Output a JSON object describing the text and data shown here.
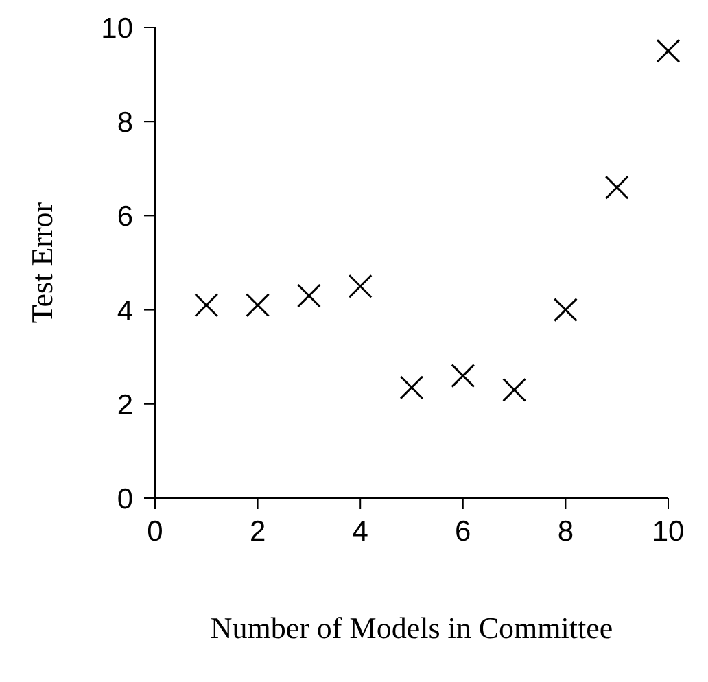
{
  "chart_data": {
    "type": "scatter",
    "xlabel": "Number of Models in Committee",
    "ylabel": "Test Error",
    "x": [
      1,
      2,
      3,
      4,
      5,
      6,
      7,
      8,
      9,
      10
    ],
    "series": [
      {
        "color": "#000000",
        "values": [
          4.1,
          4.1,
          4.3,
          4.5,
          2.35,
          2.6,
          2.3,
          4.0,
          6.6,
          9.5
        ]
      }
    ],
    "xlim": [
      0,
      10
    ],
    "xticks": [
      0,
      2,
      4,
      6,
      8,
      10
    ],
    "ylim": [
      0,
      10
    ],
    "yticks": [
      0,
      2,
      4,
      6,
      8,
      10
    ],
    "marker": "cross",
    "grid": false,
    "legend": false
  }
}
